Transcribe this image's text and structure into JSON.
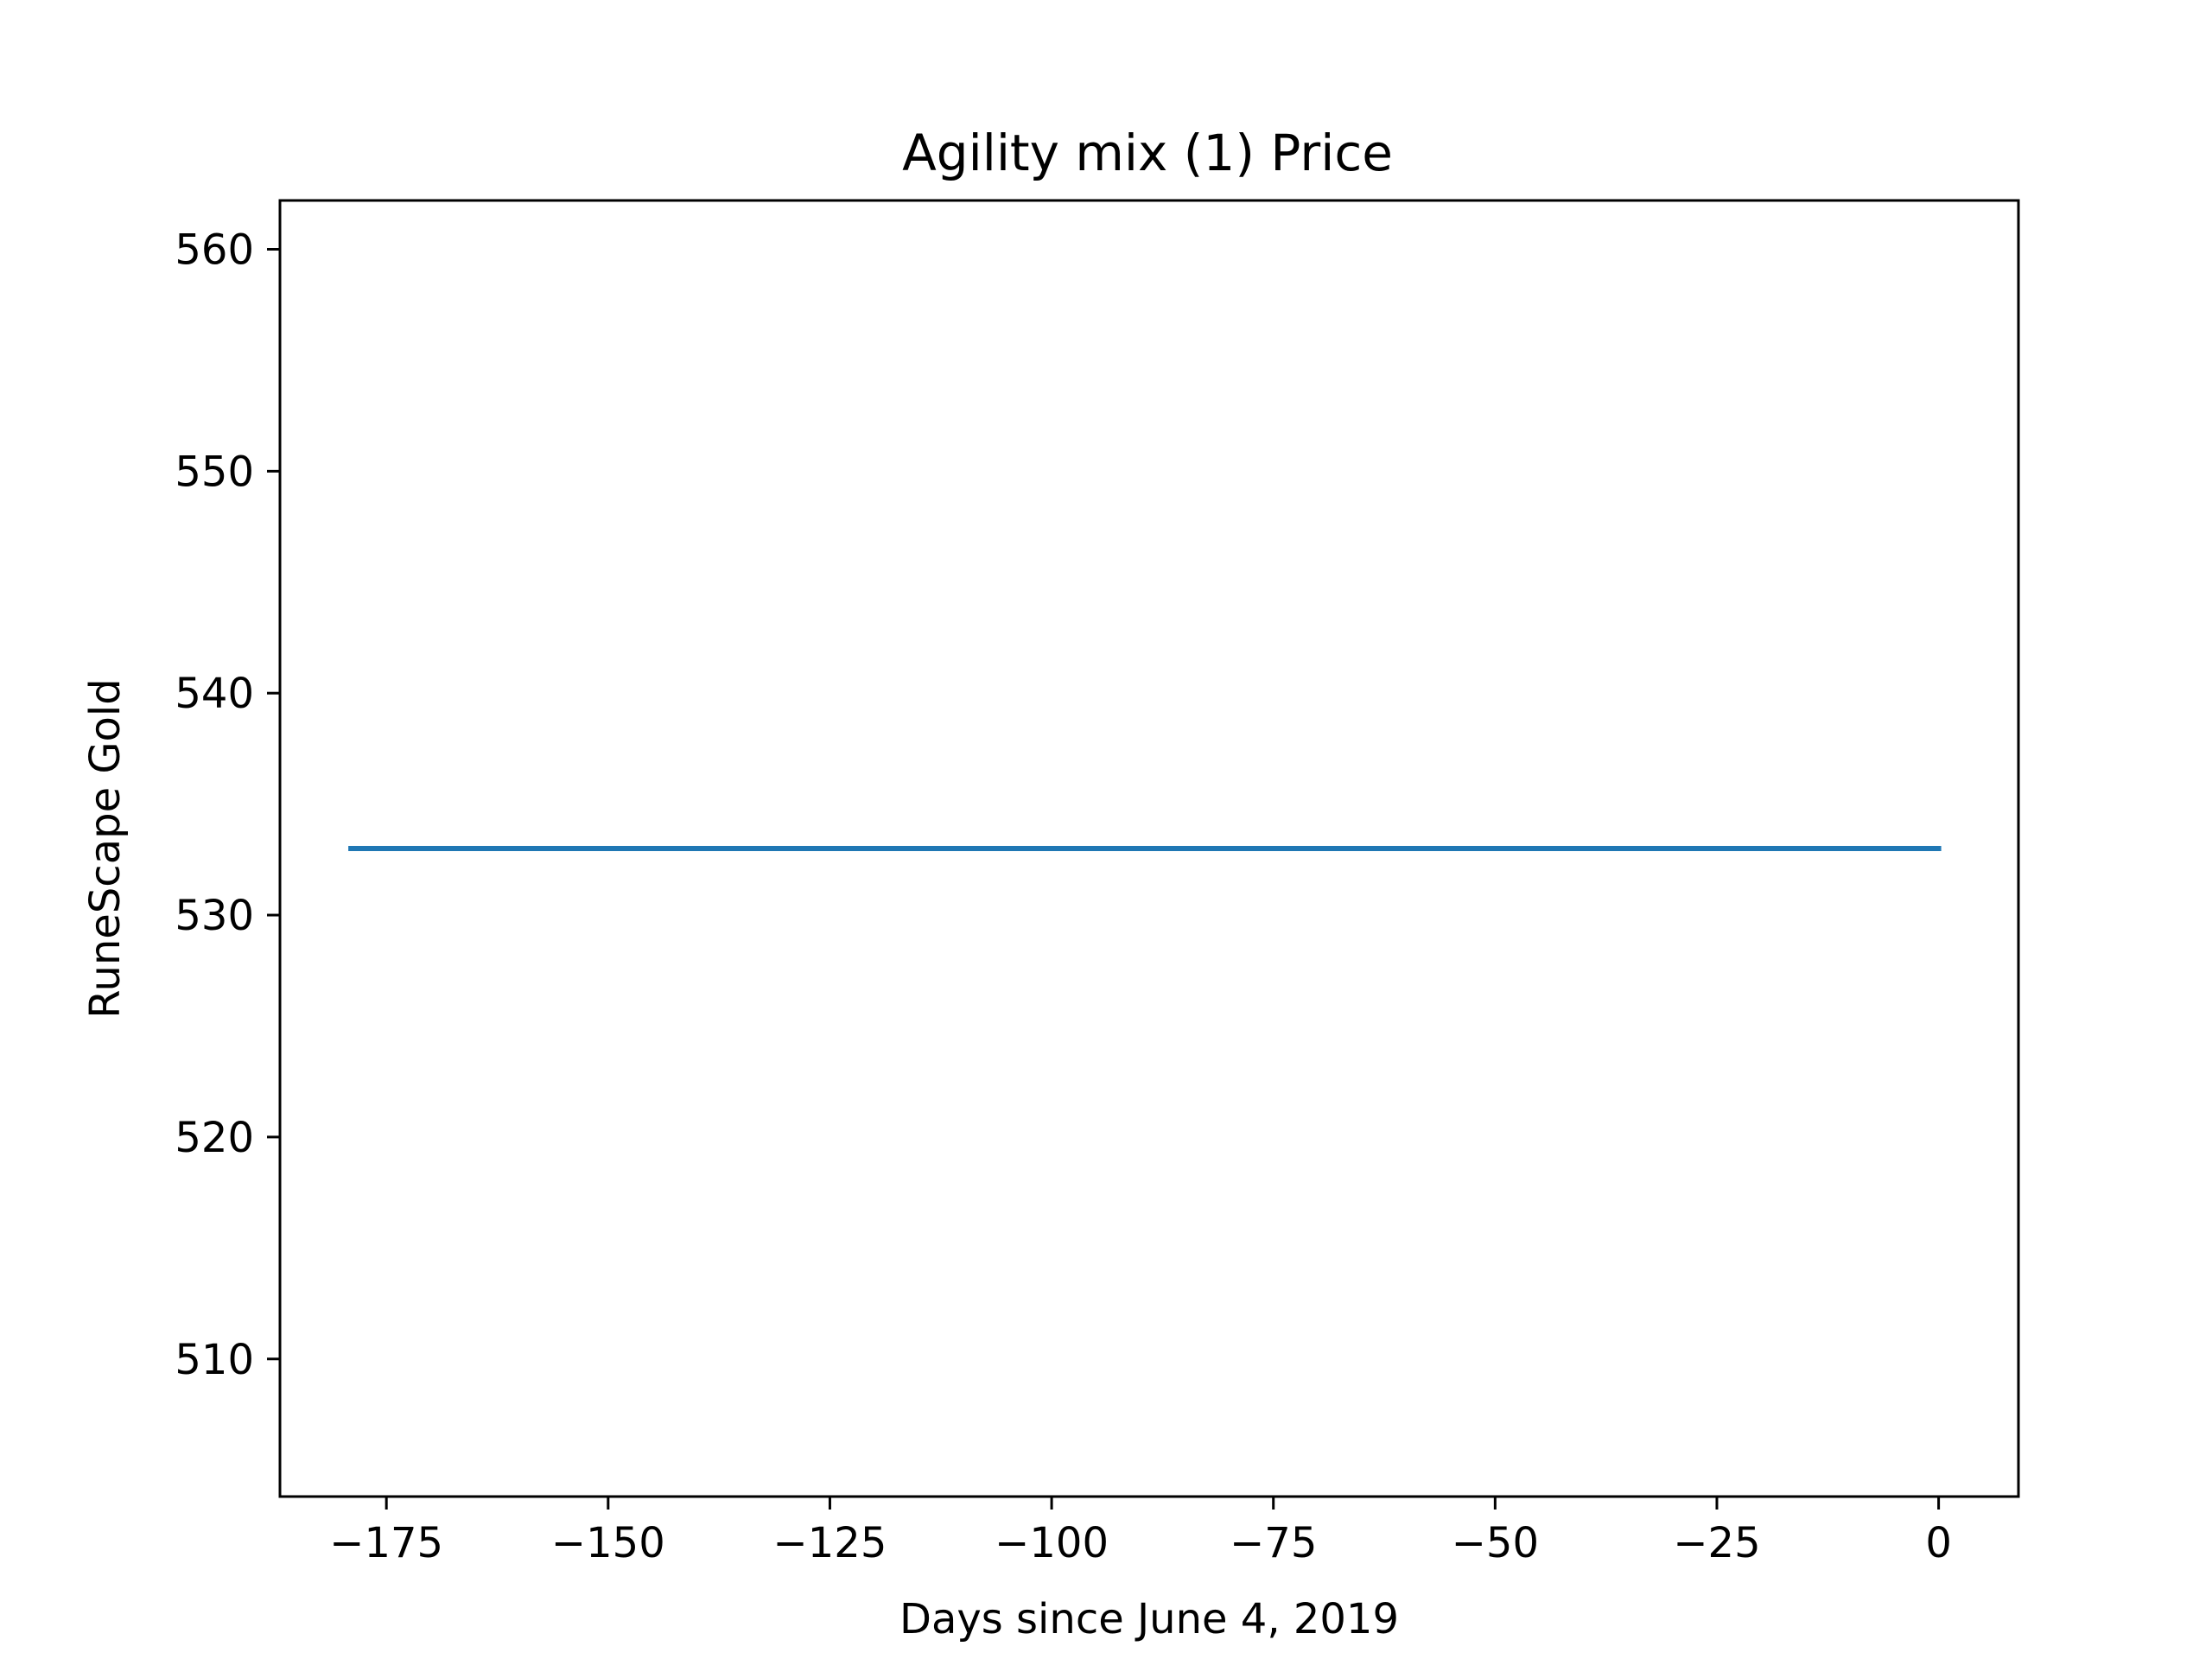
{
  "chart_data": {
    "type": "line",
    "title": "Agility mix (1) Price",
    "xlabel": "Days since June 4, 2019",
    "ylabel": "RuneScape Gold",
    "xlim": [
      -187,
      9
    ],
    "ylim": [
      503.8,
      562.2
    ],
    "xticks": [
      -175,
      -150,
      -125,
      -100,
      -75,
      -50,
      -25,
      0
    ],
    "xtick_labels": [
      "−175",
      "−150",
      "−125",
      "−100",
      "−75",
      "−50",
      "−25",
      "0"
    ],
    "yticks": [
      510,
      520,
      530,
      540,
      550,
      560
    ],
    "ytick_labels": [
      "510",
      "520",
      "530",
      "540",
      "550",
      "560"
    ],
    "grid": false,
    "series": [
      {
        "color": "#1f77b4",
        "x": [
          -179,
          0
        ],
        "y": [
          533,
          533
        ]
      }
    ]
  }
}
